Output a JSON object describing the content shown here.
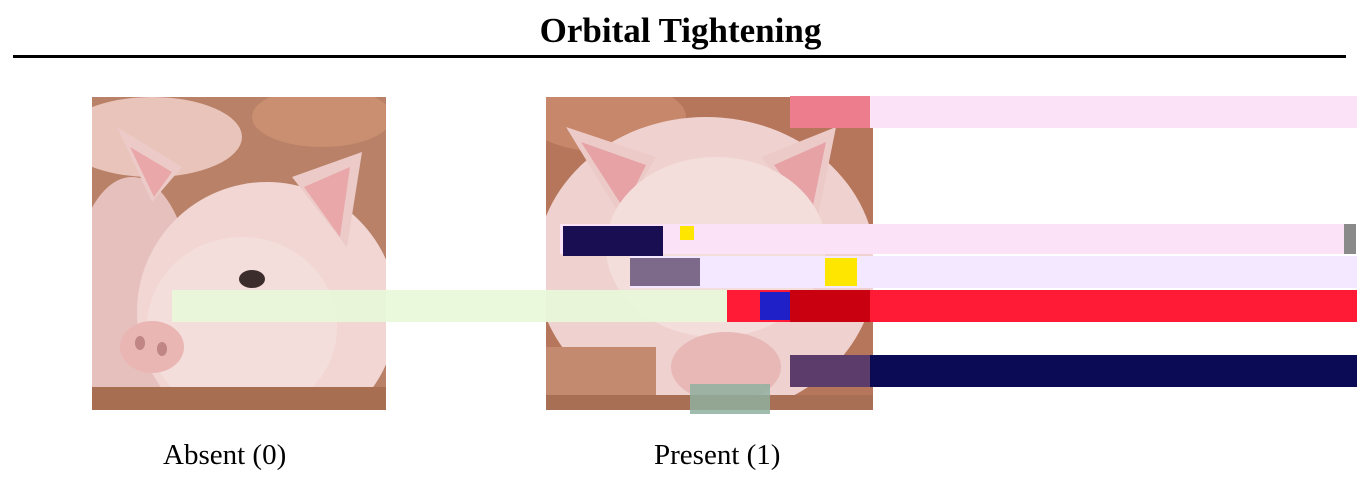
{
  "title": "Orbital Tightening",
  "panels": [
    {
      "caption": "Absent (0)"
    },
    {
      "caption": "Present (1)"
    }
  ],
  "colors": {
    "rule": "#000000",
    "pig_skin": "#f1d6d4",
    "pig_ear_inner": "#e9a7a9",
    "background_bedding": "#b77a5d",
    "glitch_pink": "#fbe2f6",
    "glitch_lavender": "#f3e8ff",
    "glitch_red": "#ff1a35",
    "glitch_navy": "#0a0a55",
    "glitch_green": "#e8f8d8"
  }
}
